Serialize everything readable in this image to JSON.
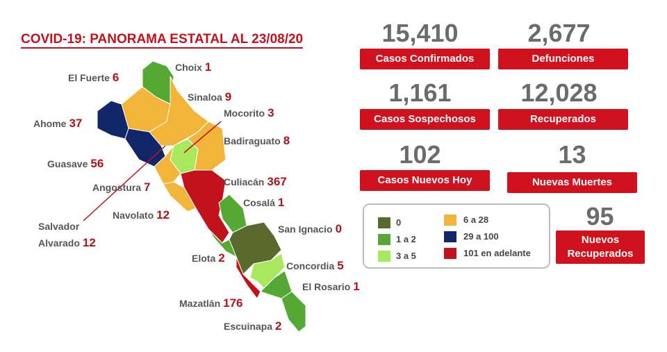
{
  "header": {
    "title": "COVID-19: PANORAMA ESTATAL AL 23/08/20"
  },
  "stats": [
    {
      "value": "15,410",
      "label": "Casos Confirmados"
    },
    {
      "value": "2,677",
      "label": "Defunciones"
    },
    {
      "value": "1,161",
      "label": "Casos Sospechosos"
    },
    {
      "value": "12,028",
      "label": "Recuperados"
    },
    {
      "value": "102",
      "label": "Casos Nuevos Hoy"
    },
    {
      "value": "13",
      "label": "Nuevas Muertes"
    },
    {
      "value": "95",
      "label": "Nuevos Recuperados"
    }
  ],
  "legend": [
    {
      "label": "0",
      "color": "#5a6a2c"
    },
    {
      "label": "1 a 2",
      "color": "#56a834"
    },
    {
      "label": "3 a 5",
      "color": "#a8e85c"
    },
    {
      "label": "6 a 28",
      "color": "#f2b53a"
    },
    {
      "label": "29 a 100",
      "color": "#12266a"
    },
    {
      "label": "101 en adelante",
      "color": "#c2121c"
    }
  ],
  "municipalities": [
    {
      "name": "Choix",
      "cases": 1
    },
    {
      "name": "El Fuerte",
      "cases": 6
    },
    {
      "name": "Sinaloa",
      "cases": 9
    },
    {
      "name": "Mocorito",
      "cases": 3
    },
    {
      "name": "Ahome",
      "cases": 37
    },
    {
      "name": "Badiraguato",
      "cases": 8
    },
    {
      "name": "Guasave",
      "cases": 56
    },
    {
      "name": "Culiacán",
      "cases": 367
    },
    {
      "name": "Angostura",
      "cases": 7
    },
    {
      "name": "Cosalá",
      "cases": 1
    },
    {
      "name": "Navolato",
      "cases": 12
    },
    {
      "name": "Salvador Alvarado",
      "cases": 12
    },
    {
      "name": "San Ignacio",
      "cases": 0
    },
    {
      "name": "Elota",
      "cases": 2
    },
    {
      "name": "Concordia",
      "cases": 5
    },
    {
      "name": "El Rosario",
      "cases": 1
    },
    {
      "name": "Mazatlán",
      "cases": 176
    },
    {
      "name": "Escuinapa",
      "cases": 2
    }
  ]
}
